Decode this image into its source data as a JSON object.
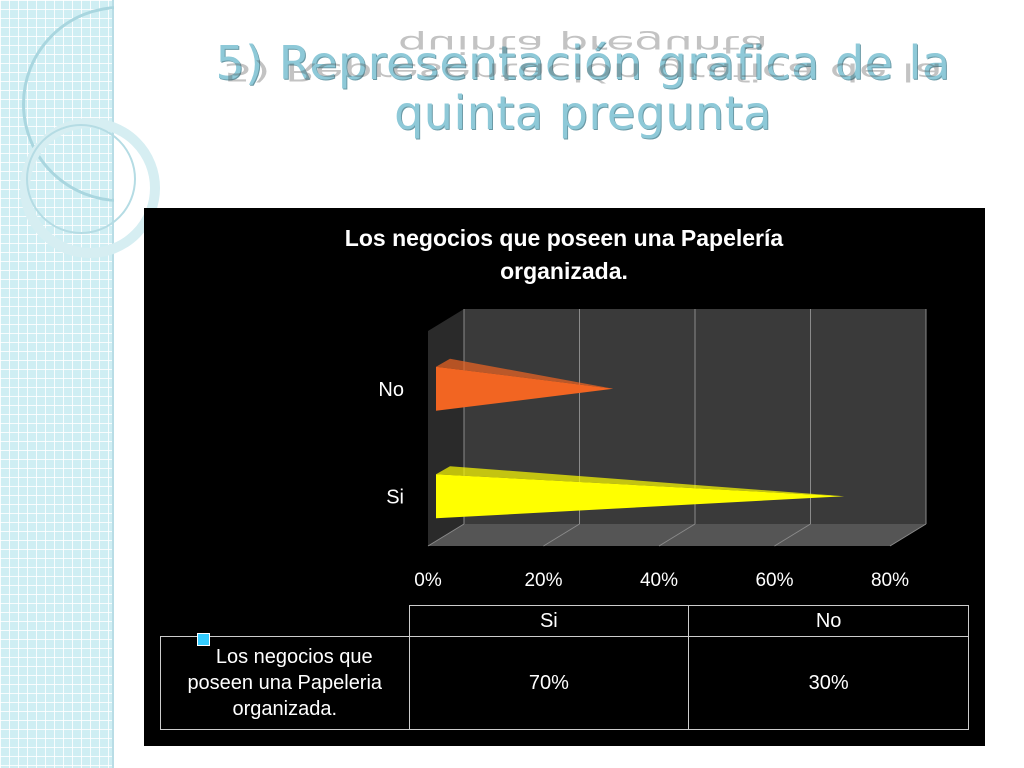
{
  "slide": {
    "title": "5) Representación grafica de la quinta pregunta"
  },
  "colors": {
    "panel_background": "#000000",
    "bar_si": "#ffff00",
    "bar_no": "#f26522",
    "legend_swatch": "#33ccff",
    "title_color": "#8ec9d8"
  },
  "chart_data": {
    "type": "bar",
    "orientation": "horizontal",
    "style": "3d-cone",
    "title": "Los negocios que poseen una Papelería organizada.",
    "title_lines": [
      "Los negocios que poseen una Papelería",
      "organizada."
    ],
    "categories": [
      "Si",
      "No"
    ],
    "series": [
      {
        "name": "Los negocios que poseen una Papeleria organizada.",
        "values": [
          0.7,
          0.3
        ]
      }
    ],
    "xlim": [
      0,
      0.8
    ],
    "x_ticks": [
      "0%",
      "20%",
      "40%",
      "60%",
      "80%"
    ],
    "grid": true,
    "legend": "data-table"
  },
  "data_table": {
    "headers": [
      "Si",
      "No"
    ],
    "row_label_lines": [
      "Los negocios que",
      "poseen una Papeleria",
      "organizada."
    ],
    "values": [
      "70%",
      "30%"
    ]
  }
}
